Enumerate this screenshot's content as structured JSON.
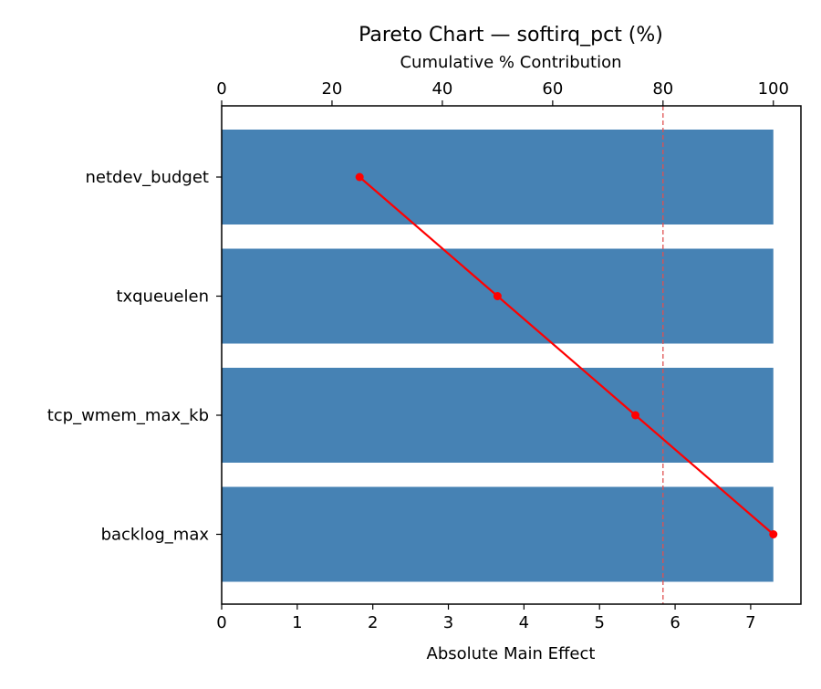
{
  "chart_data": {
    "type": "bar",
    "orientation": "horizontal",
    "title": "Pareto Chart — softirq_pct (%)",
    "xlabel": "Absolute Main Effect",
    "x2label": "Cumulative % Contribution",
    "categories": [
      "netdev_budget",
      "txqueuelen",
      "tcp_wmem_max_kb",
      "backlog_max"
    ],
    "values": [
      7.3,
      7.3,
      7.3,
      7.3
    ],
    "cumulative": [
      25,
      50,
      75,
      100
    ],
    "threshold": 80,
    "xlim": [
      0,
      7.665
    ],
    "x2lim": [
      0,
      105
    ],
    "xticks": [
      0,
      1,
      2,
      3,
      4,
      5,
      6,
      7
    ],
    "x2ticks": [
      0,
      20,
      40,
      60,
      80,
      100
    ],
    "grid": false,
    "colors": {
      "bar": "#4682b4",
      "line": "#ff0000",
      "threshold": "#e05050"
    }
  }
}
